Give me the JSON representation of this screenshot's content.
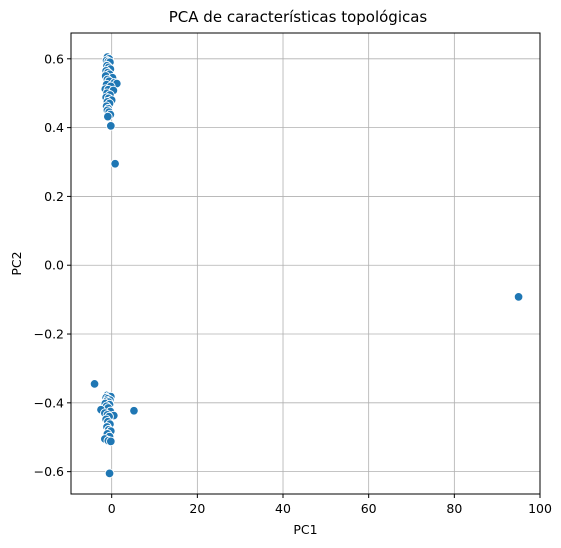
{
  "chart_data": {
    "type": "scatter",
    "title": "PCA de características topológicas",
    "xlabel": "PC1",
    "ylabel": "PC2",
    "xlim": [
      -9.5,
      100
    ],
    "ylim": [
      -0.665,
      0.675
    ],
    "xticks": [
      0,
      20,
      40,
      60,
      80,
      100
    ],
    "xtick_labels": [
      "0",
      "20",
      "40",
      "60",
      "80",
      "100"
    ],
    "yticks": [
      -0.6,
      -0.4,
      -0.2,
      0.0,
      0.2,
      0.4,
      0.6
    ],
    "ytick_labels": [
      "−0.6",
      "−0.4",
      "−0.2",
      "0.0",
      "0.2",
      "0.4",
      "0.6"
    ],
    "grid": true,
    "color": "#1f77b4",
    "points": [
      [
        -1.0,
        0.605
      ],
      [
        -0.6,
        0.6
      ],
      [
        -1.2,
        0.595
      ],
      [
        -0.8,
        0.592
      ],
      [
        -0.4,
        0.59
      ],
      [
        -1.1,
        0.58
      ],
      [
        -0.7,
        0.575
      ],
      [
        -0.3,
        0.57
      ],
      [
        -1.3,
        0.565
      ],
      [
        -0.9,
        0.56
      ],
      [
        -0.5,
        0.555
      ],
      [
        -1.4,
        0.55
      ],
      [
        0.2,
        0.545
      ],
      [
        -1.0,
        0.54
      ],
      [
        -0.6,
        0.535
      ],
      [
        0.6,
        0.53
      ],
      [
        1.2,
        0.528
      ],
      [
        -1.2,
        0.525
      ],
      [
        -0.2,
        0.52
      ],
      [
        -1.5,
        0.512
      ],
      [
        -0.8,
        0.51
      ],
      [
        0.4,
        0.508
      ],
      [
        -1.1,
        0.5
      ],
      [
        -0.4,
        0.495
      ],
      [
        -1.3,
        0.488
      ],
      [
        -0.7,
        0.485
      ],
      [
        0.0,
        0.48
      ],
      [
        -1.0,
        0.475
      ],
      [
        -0.5,
        0.47
      ],
      [
        -1.2,
        0.462
      ],
      [
        -0.8,
        0.455
      ],
      [
        -1.0,
        0.45
      ],
      [
        -0.6,
        0.445
      ],
      [
        -0.3,
        0.438
      ],
      [
        -0.9,
        0.432
      ],
      [
        -0.2,
        0.405
      ],
      [
        0.8,
        0.295
      ],
      [
        95.0,
        -0.092
      ],
      [
        -4.0,
        -0.345
      ],
      [
        -1.0,
        -0.378
      ],
      [
        -0.6,
        -0.38
      ],
      [
        -0.2,
        -0.382
      ],
      [
        -1.3,
        -0.385
      ],
      [
        -0.9,
        -0.388
      ],
      [
        -0.4,
        -0.392
      ],
      [
        -1.1,
        -0.395
      ],
      [
        -0.7,
        -0.398
      ],
      [
        -1.5,
        -0.402
      ],
      [
        -0.5,
        -0.405
      ],
      [
        -1.2,
        -0.41
      ],
      [
        -0.8,
        -0.415
      ],
      [
        -2.5,
        -0.42
      ],
      [
        -0.3,
        -0.425
      ],
      [
        5.2,
        -0.423
      ],
      [
        -1.6,
        -0.43
      ],
      [
        -1.0,
        -0.435
      ],
      [
        0.5,
        -0.437
      ],
      [
        -0.6,
        -0.44
      ],
      [
        -1.3,
        -0.448
      ],
      [
        -0.9,
        -0.455
      ],
      [
        -0.4,
        -0.462
      ],
      [
        -1.1,
        -0.47
      ],
      [
        -0.7,
        -0.478
      ],
      [
        -0.2,
        -0.482
      ],
      [
        -1.0,
        -0.49
      ],
      [
        -0.5,
        -0.498
      ],
      [
        -1.6,
        -0.505
      ],
      [
        -0.8,
        -0.51
      ],
      [
        -0.2,
        -0.512
      ],
      [
        -0.5,
        -0.605
      ]
    ]
  }
}
